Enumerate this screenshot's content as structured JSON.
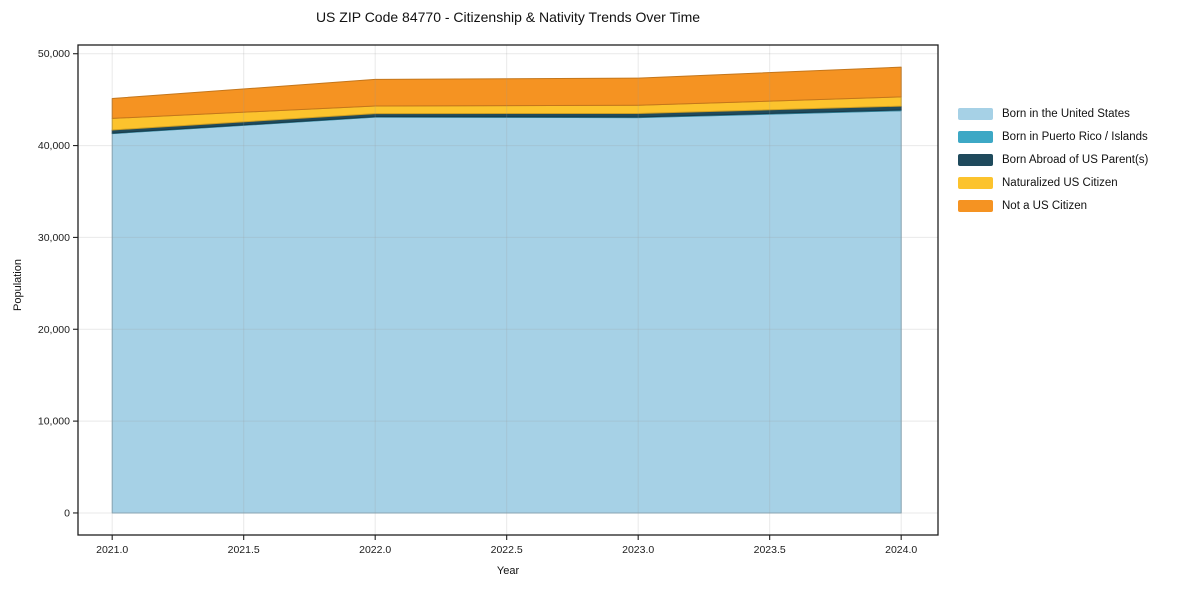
{
  "chart_data": {
    "type": "area",
    "stacked": true,
    "title": "US ZIP Code 84770 - Citizenship & Nativity Trends Over Time",
    "xlabel": "Year",
    "ylabel": "Population",
    "x": [
      2021,
      2022,
      2023,
      2024
    ],
    "series": [
      {
        "name": "Born in the United States",
        "color": "#a6d1e6",
        "values": [
          41300,
          43100,
          43050,
          43800
        ]
      },
      {
        "name": "Born in Puerto Rico / Islands",
        "color": "#3da8c5",
        "values": [
          60,
          50,
          60,
          80
        ]
      },
      {
        "name": "Born Abroad of US Parent(s)",
        "color": "#1f4a5c",
        "values": [
          330,
          330,
          380,
          420
        ]
      },
      {
        "name": "Naturalized US Citizen",
        "color": "#fcc32d",
        "values": [
          1270,
          830,
          900,
          1000
        ]
      },
      {
        "name": "Not a US Citizen",
        "color": "#f59322",
        "values": [
          2170,
          2900,
          2960,
          3240
        ]
      }
    ],
    "xlim": [
      2020.87,
      2024.14
    ],
    "ylim": [
      -2400,
      50950
    ],
    "x_ticks": {
      "values": [
        2021.0,
        2021.5,
        2022.0,
        2022.5,
        2023.0,
        2023.5,
        2024.0
      ],
      "labels": [
        "2021.0",
        "2021.5",
        "2022.0",
        "2022.5",
        "2023.0",
        "2023.5",
        "2024.0"
      ]
    },
    "y_ticks": {
      "values": [
        0,
        10000,
        20000,
        30000,
        40000,
        50000
      ],
      "labels": [
        "0",
        "10,000",
        "20,000",
        "30,000",
        "40,000",
        "50,000"
      ]
    },
    "grid": true,
    "legend_position": "right",
    "colors": {
      "background": "#ffffff",
      "spine": "#1f1f1f",
      "grid": "#9a9a9a",
      "tick_text": "#1c1c1c"
    }
  }
}
